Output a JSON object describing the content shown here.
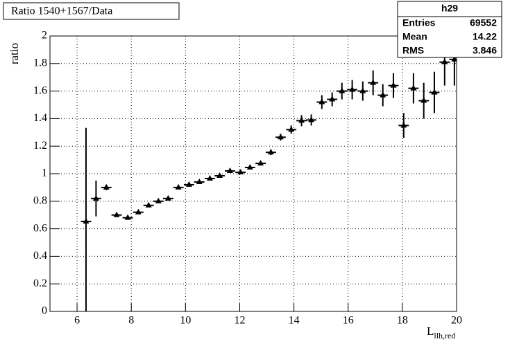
{
  "chart_data": {
    "type": "scatter",
    "title": "Ratio 1540+1567/Data",
    "y_label": "ratio",
    "x_label": "L",
    "x_label_sub": "llh,red",
    "xlim": [
      5,
      20
    ],
    "ylim": [
      0,
      2
    ],
    "xticks": [
      6,
      8,
      10,
      12,
      14,
      16,
      18,
      20
    ],
    "yticks": [
      0,
      0.2,
      0.4,
      0.6,
      0.8,
      1,
      1.2,
      1.4,
      1.6,
      1.8,
      2
    ],
    "grid": true,
    "color": "#000000",
    "xerr": 0.19,
    "x": [
      6.33,
      6.7,
      7.08,
      7.46,
      7.87,
      8.26,
      8.64,
      9.0,
      9.36,
      9.74,
      10.13,
      10.51,
      10.9,
      11.26,
      11.64,
      12.03,
      12.38,
      12.77,
      13.15,
      13.51,
      13.9,
      14.28,
      14.64,
      15.03,
      15.41,
      15.77,
      16.15,
      16.54,
      16.92,
      17.28,
      17.67,
      18.05,
      18.41,
      18.79,
      19.18,
      19.56,
      19.92
    ],
    "values": [
      0.653,
      0.82,
      0.9,
      0.7,
      0.68,
      0.72,
      0.77,
      0.8,
      0.82,
      0.9,
      0.92,
      0.94,
      0.965,
      0.985,
      1.02,
      1.01,
      1.045,
      1.075,
      1.155,
      1.265,
      1.32,
      1.385,
      1.39,
      1.52,
      1.54,
      1.6,
      1.61,
      1.6,
      1.66,
      1.57,
      1.64,
      1.35,
      1.62,
      1.53,
      1.59,
      1.81,
      1.83
    ],
    "errors": [
      0.68,
      0.13,
      0.02,
      0.01,
      0.01,
      0.01,
      0.01,
      0.01,
      0.01,
      0.01,
      0.01,
      0.01,
      0.01,
      0.01,
      0.01,
      0.01,
      0.01,
      0.015,
      0.02,
      0.025,
      0.03,
      0.04,
      0.04,
      0.05,
      0.05,
      0.06,
      0.07,
      0.07,
      0.09,
      0.08,
      0.09,
      0.09,
      0.11,
      0.13,
      0.15,
      0.17,
      0.19
    ],
    "stats": {
      "title": "h29",
      "rows": [
        [
          "Entries",
          69552
        ],
        [
          "Mean",
          14.22
        ],
        [
          "RMS",
          3.846
        ]
      ]
    }
  }
}
